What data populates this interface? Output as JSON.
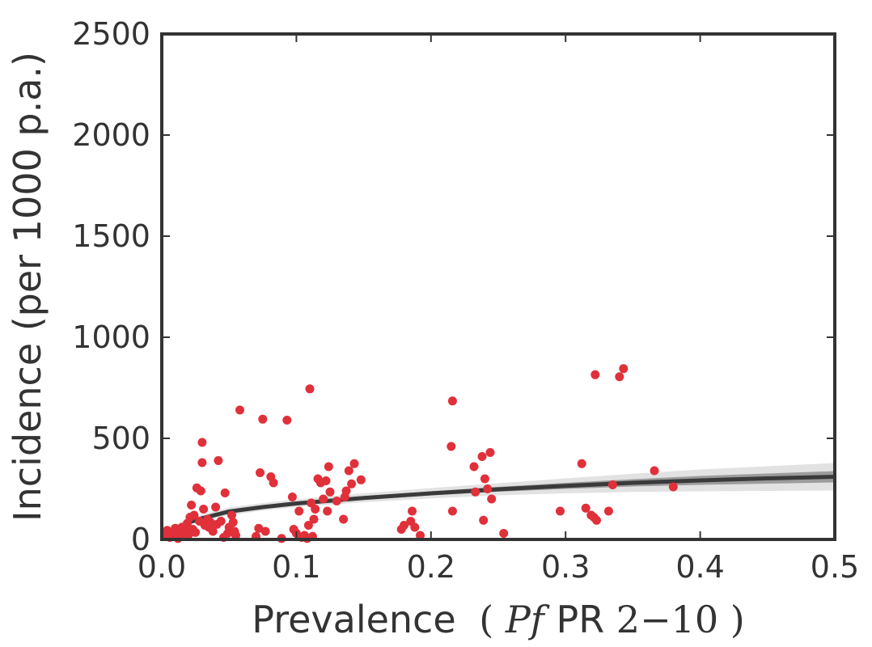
{
  "chart_data": {
    "type": "scatter",
    "xlabel_main": "Prevalence",
    "xlabel_math_pf": "Pf",
    "xlabel_math_pr": "PR",
    "xlabel_math_range": "2−10",
    "xlabel_paren_open": "(",
    "xlabel_paren_close": ")",
    "ylabel": "Incidence (per 1000 p.a.)",
    "xlim": [
      0.0,
      0.5
    ],
    "ylim": [
      0,
      2500
    ],
    "xticks": [
      "0.0",
      "0.1",
      "0.2",
      "0.3",
      "0.4",
      "0.5"
    ],
    "yticks": [
      "0",
      "500",
      "1000",
      "1500",
      "2000",
      "2500"
    ],
    "grid": false,
    "colors": {
      "points": "#e0303a",
      "fit_line": "#3a3a3a",
      "band_outer": "#e2e2e2",
      "band_inner": "#9c9c9c",
      "axis": "#333333"
    },
    "points": [
      {
        "x": 0.003,
        "y": 20
      },
      {
        "x": 0.004,
        "y": 45
      },
      {
        "x": 0.006,
        "y": 10
      },
      {
        "x": 0.008,
        "y": 35
      },
      {
        "x": 0.01,
        "y": 55
      },
      {
        "x": 0.012,
        "y": 5
      },
      {
        "x": 0.013,
        "y": 30
      },
      {
        "x": 0.015,
        "y": 60
      },
      {
        "x": 0.016,
        "y": 15
      },
      {
        "x": 0.018,
        "y": 40
      },
      {
        "x": 0.019,
        "y": 80
      },
      {
        "x": 0.02,
        "y": 25
      },
      {
        "x": 0.021,
        "y": 110
      },
      {
        "x": 0.022,
        "y": 170
      },
      {
        "x": 0.023,
        "y": 50
      },
      {
        "x": 0.024,
        "y": 120
      },
      {
        "x": 0.025,
        "y": 35
      },
      {
        "x": 0.026,
        "y": 255
      },
      {
        "x": 0.028,
        "y": 90
      },
      {
        "x": 0.029,
        "y": 240
      },
      {
        "x": 0.03,
        "y": 480
      },
      {
        "x": 0.03,
        "y": 380
      },
      {
        "x": 0.031,
        "y": 150
      },
      {
        "x": 0.032,
        "y": 70
      },
      {
        "x": 0.034,
        "y": 100
      },
      {
        "x": 0.035,
        "y": 60
      },
      {
        "x": 0.036,
        "y": 85
      },
      {
        "x": 0.038,
        "y": 40
      },
      {
        "x": 0.04,
        "y": 160
      },
      {
        "x": 0.041,
        "y": 75
      },
      {
        "x": 0.042,
        "y": 390
      },
      {
        "x": 0.044,
        "y": 90
      },
      {
        "x": 0.046,
        "y": 10
      },
      {
        "x": 0.047,
        "y": 230
      },
      {
        "x": 0.049,
        "y": 30
      },
      {
        "x": 0.05,
        "y": 60
      },
      {
        "x": 0.052,
        "y": 120
      },
      {
        "x": 0.053,
        "y": 85
      },
      {
        "x": 0.054,
        "y": 40
      },
      {
        "x": 0.055,
        "y": 20
      },
      {
        "x": 0.058,
        "y": 640
      },
      {
        "x": 0.07,
        "y": 15
      },
      {
        "x": 0.072,
        "y": 55
      },
      {
        "x": 0.073,
        "y": 330
      },
      {
        "x": 0.075,
        "y": 595
      },
      {
        "x": 0.077,
        "y": 40
      },
      {
        "x": 0.081,
        "y": 310
      },
      {
        "x": 0.083,
        "y": 280
      },
      {
        "x": 0.089,
        "y": 5
      },
      {
        "x": 0.093,
        "y": 590
      },
      {
        "x": 0.097,
        "y": 210
      },
      {
        "x": 0.098,
        "y": 50
      },
      {
        "x": 0.1,
        "y": 30
      },
      {
        "x": 0.102,
        "y": 140
      },
      {
        "x": 0.104,
        "y": 10
      },
      {
        "x": 0.106,
        "y": 20
      },
      {
        "x": 0.108,
        "y": 5
      },
      {
        "x": 0.109,
        "y": 70
      },
      {
        "x": 0.11,
        "y": 745
      },
      {
        "x": 0.111,
        "y": 180
      },
      {
        "x": 0.112,
        "y": 15
      },
      {
        "x": 0.113,
        "y": 100
      },
      {
        "x": 0.114,
        "y": 150
      },
      {
        "x": 0.116,
        "y": 300
      },
      {
        "x": 0.118,
        "y": 280
      },
      {
        "x": 0.12,
        "y": 200
      },
      {
        "x": 0.122,
        "y": 290
      },
      {
        "x": 0.123,
        "y": 140
      },
      {
        "x": 0.124,
        "y": 360
      },
      {
        "x": 0.125,
        "y": 235
      },
      {
        "x": 0.13,
        "y": 190
      },
      {
        "x": 0.135,
        "y": 100
      },
      {
        "x": 0.136,
        "y": 210
      },
      {
        "x": 0.137,
        "y": 240
      },
      {
        "x": 0.139,
        "y": 340
      },
      {
        "x": 0.141,
        "y": 275
      },
      {
        "x": 0.143,
        "y": 375
      },
      {
        "x": 0.148,
        "y": 295
      },
      {
        "x": 0.178,
        "y": 50
      },
      {
        "x": 0.18,
        "y": 70
      },
      {
        "x": 0.185,
        "y": 90
      },
      {
        "x": 0.186,
        "y": 140
      },
      {
        "x": 0.188,
        "y": 60
      },
      {
        "x": 0.192,
        "y": 20
      },
      {
        "x": 0.215,
        "y": 460
      },
      {
        "x": 0.216,
        "y": 140
      },
      {
        "x": 0.216,
        "y": 685
      },
      {
        "x": 0.232,
        "y": 360
      },
      {
        "x": 0.233,
        "y": 235
      },
      {
        "x": 0.238,
        "y": 410
      },
      {
        "x": 0.239,
        "y": 95
      },
      {
        "x": 0.24,
        "y": 300
      },
      {
        "x": 0.242,
        "y": 250
      },
      {
        "x": 0.244,
        "y": 430
      },
      {
        "x": 0.245,
        "y": 200
      },
      {
        "x": 0.254,
        "y": 30
      },
      {
        "x": 0.296,
        "y": 140
      },
      {
        "x": 0.312,
        "y": 375
      },
      {
        "x": 0.315,
        "y": 155
      },
      {
        "x": 0.319,
        "y": 120
      },
      {
        "x": 0.321,
        "y": 110
      },
      {
        "x": 0.322,
        "y": 815
      },
      {
        "x": 0.323,
        "y": 95
      },
      {
        "x": 0.332,
        "y": 140
      },
      {
        "x": 0.335,
        "y": 270
      },
      {
        "x": 0.34,
        "y": 805
      },
      {
        "x": 0.343,
        "y": 845
      },
      {
        "x": 0.366,
        "y": 340
      },
      {
        "x": 0.38,
        "y": 260
      }
    ],
    "fit": {
      "x": [
        0.0,
        0.005,
        0.01,
        0.02,
        0.03,
        0.05,
        0.075,
        0.1,
        0.15,
        0.2,
        0.25,
        0.3,
        0.35,
        0.4,
        0.45,
        0.5
      ],
      "y": [
        0,
        30,
        55,
        85,
        105,
        138,
        160,
        178,
        205,
        228,
        248,
        265,
        280,
        292,
        302,
        310
      ],
      "inner_low": [
        0,
        25,
        48,
        78,
        97,
        130,
        153,
        170,
        196,
        218,
        236,
        250,
        262,
        270,
        276,
        282
      ],
      "inner_high": [
        0,
        35,
        62,
        92,
        113,
        146,
        167,
        186,
        214,
        238,
        260,
        280,
        298,
        314,
        326,
        338
      ],
      "outer_low": [
        0,
        20,
        40,
        70,
        88,
        120,
        143,
        160,
        184,
        203,
        218,
        228,
        235,
        238,
        240,
        242
      ],
      "outer_high": [
        0,
        42,
        72,
        102,
        124,
        158,
        180,
        198,
        228,
        254,
        278,
        302,
        325,
        346,
        362,
        378
      ]
    }
  }
}
